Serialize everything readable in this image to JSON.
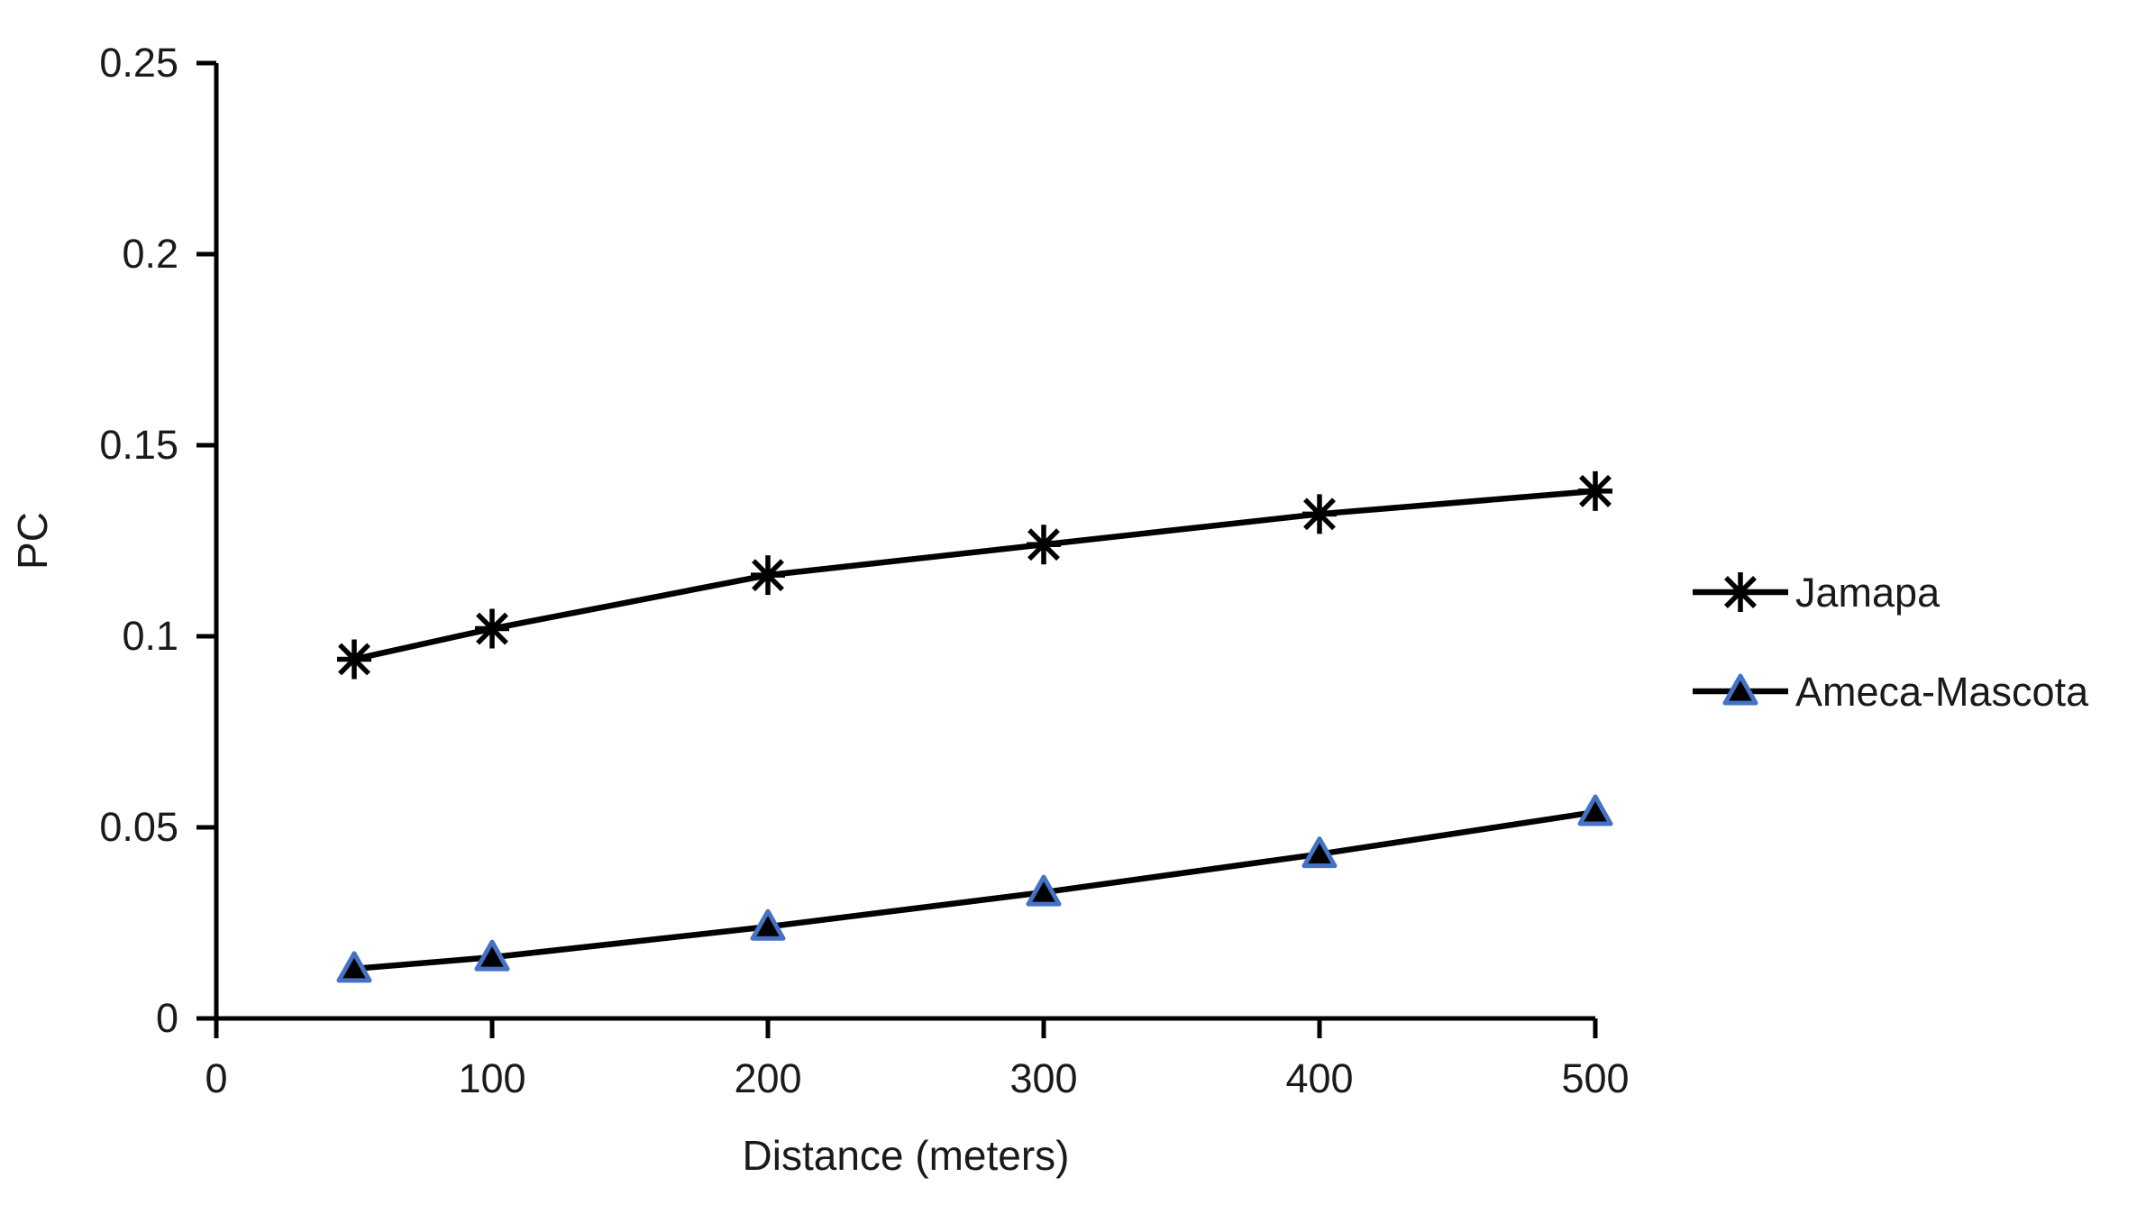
{
  "chart_data": {
    "type": "line",
    "title": "",
    "xlabel": "Distance (meters)",
    "ylabel": "PC",
    "x": [
      50,
      100,
      200,
      300,
      400,
      500
    ],
    "x_ticks": [
      0,
      100,
      200,
      300,
      400,
      500
    ],
    "y_ticks": [
      0,
      0.05,
      0.1,
      0.15,
      0.2,
      0.25
    ],
    "xlim": [
      0,
      500
    ],
    "ylim": [
      0,
      0.25
    ],
    "grid": false,
    "legend_position": "right",
    "axis_color": "#000000",
    "text_color": "#1a1a1a",
    "series": [
      {
        "name": "Ameca-Mascota",
        "marker": "triangle",
        "marker_fill": "#000000",
        "marker_stroke": "#4472C4",
        "line_color": "#000000",
        "values": [
          0.013,
          0.016,
          0.024,
          0.033,
          0.043,
          0.054
        ]
      },
      {
        "name": "Jamapa",
        "marker": "asterisk",
        "marker_fill": "#000000",
        "marker_stroke": "#000000",
        "line_color": "#000000",
        "values": [
          0.094,
          0.102,
          0.116,
          0.124,
          0.132,
          0.138
        ]
      }
    ]
  }
}
